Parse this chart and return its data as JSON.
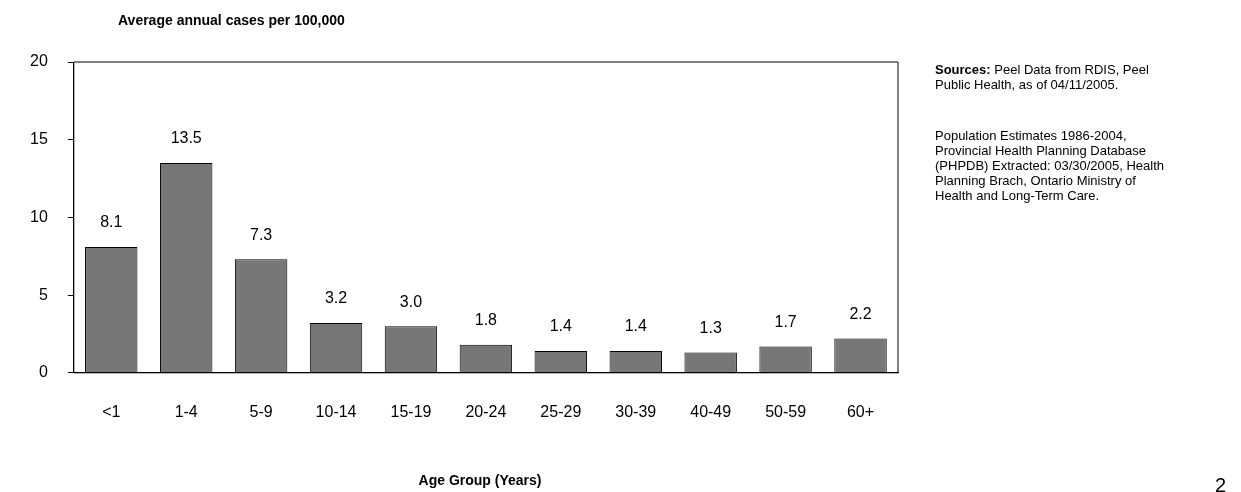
{
  "chart_data": {
    "type": "bar",
    "ylabel": "Average annual cases per 100,000",
    "xlabel": "Age Group (Years)",
    "categories": [
      "<1",
      "1-4",
      "5-9",
      "10-14",
      "15-19",
      "20-24",
      "25-29",
      "30-39",
      "40-49",
      "50-59",
      "60+"
    ],
    "values": [
      8.1,
      13.5,
      7.3,
      3.2,
      3.0,
      1.8,
      1.4,
      1.4,
      1.3,
      1.7,
      2.2
    ],
    "value_labels": [
      "8.1",
      "13.5",
      "7.3",
      "3.2",
      "3.0",
      "1.8",
      "1.4",
      "1.4",
      "1.3",
      "1.7",
      "2.2"
    ],
    "color": "#777777",
    "ylim": [
      0,
      20
    ],
    "yticks": [
      0,
      5,
      10,
      15,
      20
    ],
    "grid": false,
    "legend": false,
    "annotations": [
      "Sources: Peel Data from RDIS, Peel Public Health, as of 04/11/2005.",
      "Population Estimates 1986-2004, Provincial Health Planning Database (PHPDB) Extracted: 03/30/2005, Health Planning Brach, Ontario Ministry of Health and Long-Term Care.",
      "2"
    ]
  }
}
